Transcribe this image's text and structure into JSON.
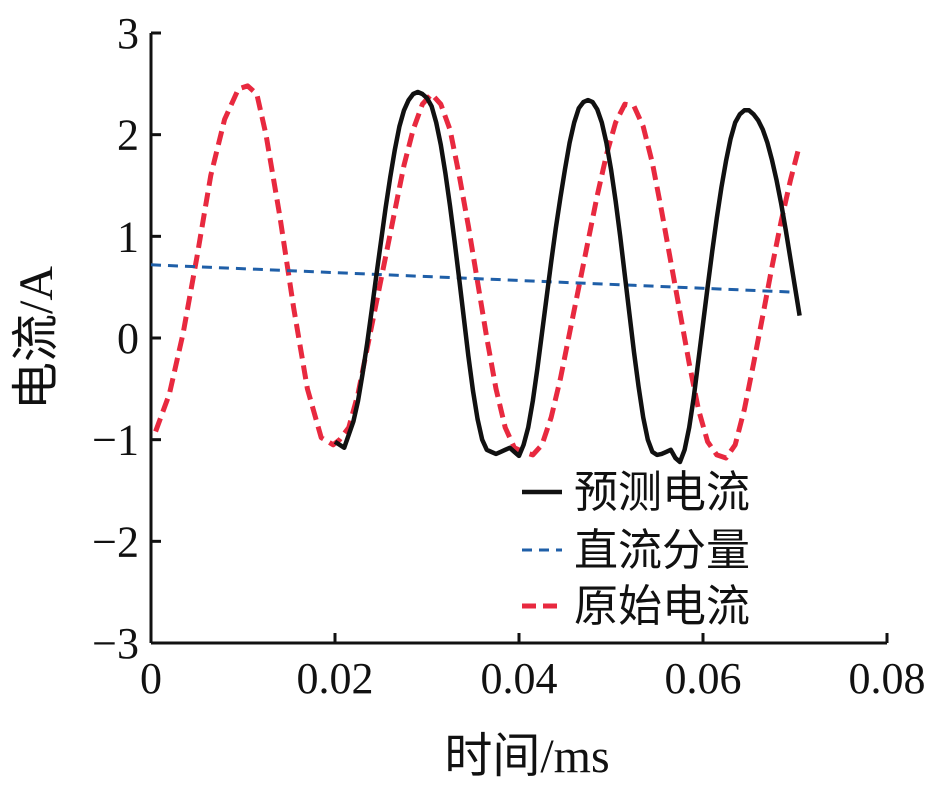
{
  "chart_data": {
    "type": "line",
    "xlabel": "时间/ms",
    "ylabel": "电流/A",
    "xlim": [
      0,
      0.08
    ],
    "ylim": [
      -3,
      3
    ],
    "xticks": [
      0,
      0.02,
      0.04,
      0.06,
      0.08
    ],
    "xtick_labels": [
      "0",
      "0.02",
      "0.04",
      "0.06",
      "0.08"
    ],
    "yticks": [
      -3,
      -2,
      -1,
      0,
      1,
      2,
      3
    ],
    "ytick_labels": [
      "−3",
      "−2",
      "−1",
      "0",
      "1",
      "2",
      "3"
    ],
    "grid": false,
    "legend_position": "bottom-right",
    "series": [
      {
        "name": "预测电流",
        "style": "solid",
        "color": "#111111",
        "x": [
          0.02,
          0.0205,
          0.021,
          0.0215,
          0.022,
          0.0225,
          0.023,
          0.0235,
          0.024,
          0.0245,
          0.025,
          0.0255,
          0.026,
          0.0265,
          0.027,
          0.0275,
          0.028,
          0.0285,
          0.029,
          0.0295,
          0.03,
          0.0305,
          0.031,
          0.0315,
          0.032,
          0.0325,
          0.033,
          0.0335,
          0.034,
          0.0345,
          0.035,
          0.0355,
          0.036,
          0.0365,
          0.037,
          0.0375,
          0.038,
          0.0385,
          0.039,
          0.0395,
          0.04,
          0.0405,
          0.041,
          0.0415,
          0.042,
          0.0425,
          0.043,
          0.0435,
          0.044,
          0.0445,
          0.045,
          0.0455,
          0.046,
          0.0465,
          0.047,
          0.0475,
          0.048,
          0.0485,
          0.049,
          0.0495,
          0.05,
          0.0505,
          0.051,
          0.0515,
          0.052,
          0.0525,
          0.053,
          0.0535,
          0.054,
          0.0545,
          0.055,
          0.0555,
          0.056,
          0.0565,
          0.057,
          0.0575,
          0.058,
          0.0585,
          0.059,
          0.0595,
          0.06,
          0.0605,
          0.061,
          0.0615,
          0.062,
          0.0625,
          0.063,
          0.0635,
          0.064,
          0.0645,
          0.065,
          0.0655,
          0.066,
          0.0665,
          0.067,
          0.0675,
          0.068,
          0.0685,
          0.069,
          0.0695,
          0.07,
          0.0705
        ],
        "y": [
          -1.02,
          -1.05,
          -1.08,
          -0.95,
          -0.82,
          -0.62,
          -0.35,
          -0.05,
          0.28,
          0.62,
          0.95,
          1.28,
          1.58,
          1.85,
          2.08,
          2.24,
          2.34,
          2.4,
          2.42,
          2.4,
          2.36,
          2.28,
          2.12,
          1.9,
          1.62,
          1.3,
          0.95,
          0.58,
          0.2,
          -0.18,
          -0.52,
          -0.8,
          -1.0,
          -1.1,
          -1.12,
          -1.14,
          -1.12,
          -1.1,
          -1.08,
          -1.12,
          -1.16,
          -1.05,
          -0.88,
          -0.62,
          -0.3,
          0.05,
          0.4,
          0.75,
          1.08,
          1.38,
          1.66,
          1.92,
          2.12,
          2.26,
          2.32,
          2.34,
          2.32,
          2.25,
          2.12,
          1.92,
          1.66,
          1.35,
          1.0,
          0.62,
          0.24,
          -0.14,
          -0.48,
          -0.78,
          -1.0,
          -1.12,
          -1.15,
          -1.14,
          -1.12,
          -1.1,
          -1.18,
          -1.22,
          -1.1,
          -0.88,
          -0.58,
          -0.22,
          0.14,
          0.5,
          0.85,
          1.18,
          1.48,
          1.74,
          1.96,
          2.12,
          2.2,
          2.24,
          2.24,
          2.2,
          2.14,
          2.05,
          1.92,
          1.75,
          1.55,
          1.32,
          1.06,
          0.78,
          0.5,
          0.22
        ]
      },
      {
        "name": "直流分量",
        "style": "dashed",
        "color": "#1f5fa8",
        "x": [
          0,
          0.07
        ],
        "y": [
          0.72,
          0.45
        ]
      },
      {
        "name": "原始电流",
        "style": "dashed",
        "color": "#e8293f",
        "x": [
          0.0005,
          0.002,
          0.0035,
          0.005,
          0.0065,
          0.008,
          0.0095,
          0.0105,
          0.0115,
          0.0125,
          0.014,
          0.0155,
          0.017,
          0.0185,
          0.0198,
          0.0205,
          0.0215,
          0.0225,
          0.0235,
          0.0245,
          0.0255,
          0.0265,
          0.0275,
          0.0285,
          0.0295,
          0.0305,
          0.0315,
          0.0325,
          0.0335,
          0.0345,
          0.0355,
          0.0365,
          0.0375,
          0.0385,
          0.0395,
          0.0405,
          0.0415,
          0.0425,
          0.0435,
          0.0445,
          0.0455,
          0.0465,
          0.0475,
          0.0485,
          0.0495,
          0.0505,
          0.0515,
          0.0525,
          0.0535,
          0.0545,
          0.0555,
          0.0565,
          0.0575,
          0.0585,
          0.0595,
          0.0605,
          0.0615,
          0.0625,
          0.0635,
          0.0645,
          0.0655,
          0.0665,
          0.0675,
          0.0685,
          0.0695,
          0.0705
        ],
        "y": [
          -0.92,
          -0.55,
          0.05,
          0.8,
          1.6,
          2.15,
          2.45,
          2.48,
          2.4,
          2.0,
          1.2,
          0.3,
          -0.5,
          -0.98,
          -1.05,
          -1.0,
          -0.88,
          -0.55,
          -0.1,
          0.35,
          0.8,
          1.25,
          1.7,
          2.05,
          2.3,
          2.4,
          2.3,
          2.05,
          1.6,
          1.1,
          0.55,
          0.0,
          -0.5,
          -0.88,
          -1.08,
          -1.12,
          -1.15,
          -1.05,
          -0.78,
          -0.4,
          0.05,
          0.5,
          0.95,
          1.4,
          1.8,
          2.12,
          2.3,
          2.28,
          2.08,
          1.72,
          1.25,
          0.75,
          0.25,
          -0.25,
          -0.7,
          -1.02,
          -1.15,
          -1.18,
          -1.05,
          -0.7,
          -0.25,
          0.22,
          0.7,
          1.15,
          1.55,
          1.9
        ]
      }
    ]
  }
}
